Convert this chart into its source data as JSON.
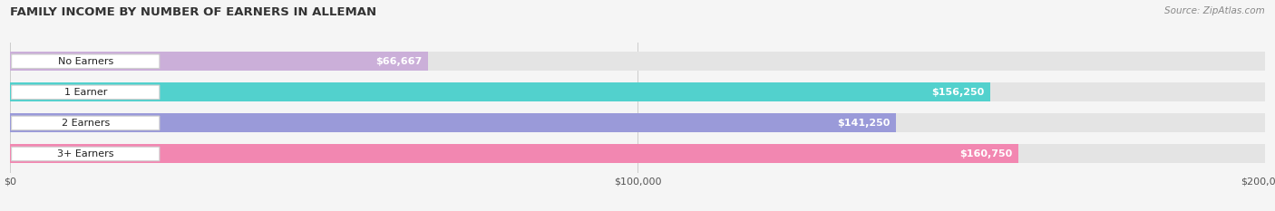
{
  "title": "FAMILY INCOME BY NUMBER OF EARNERS IN ALLEMAN",
  "source": "Source: ZipAtlas.com",
  "categories": [
    "No Earners",
    "1 Earner",
    "2 Earners",
    "3+ Earners"
  ],
  "values": [
    66667,
    156250,
    141250,
    160750
  ],
  "bar_colors": [
    "#c8a8d8",
    "#3ecfca",
    "#9090d8",
    "#f47aaa"
  ],
  "bar_labels": [
    "$66,667",
    "$156,250",
    "$141,250",
    "$160,750"
  ],
  "xlim": [
    0,
    200000
  ],
  "xticks": [
    0,
    100000,
    200000
  ],
  "xtick_labels": [
    "$0",
    "$100,000",
    "$200,000"
  ],
  "bg_color": "#f5f5f5",
  "track_color": "#e4e4e4",
  "title_fontsize": 9.5,
  "label_fontsize": 8.5,
  "value_fontsize": 8.0,
  "bar_height": 0.62,
  "figsize": [
    14.06,
    2.33
  ],
  "dpi": 100
}
